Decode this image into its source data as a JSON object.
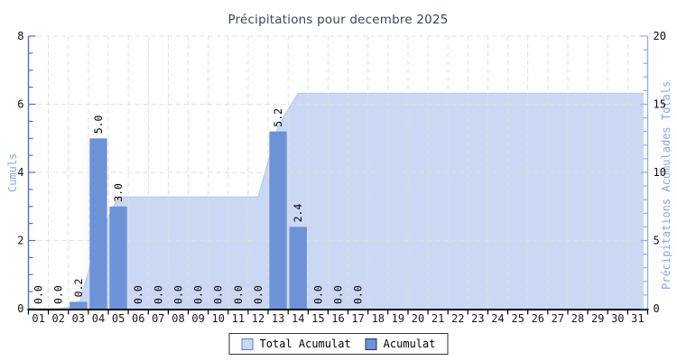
{
  "chart_data": {
    "type": "bar+area",
    "title": "Précipitations pour decembre 2025",
    "categories": [
      "01",
      "02",
      "03",
      "04",
      "05",
      "06",
      "07",
      "08",
      "09",
      "10",
      "11",
      "12",
      "13",
      "14",
      "15",
      "16",
      "17",
      "18",
      "19",
      "20",
      "21",
      "22",
      "23",
      "24",
      "25",
      "26",
      "27",
      "28",
      "29",
      "30",
      "31"
    ],
    "series": [
      {
        "name": "Acumulat",
        "type": "bar",
        "axis": "left",
        "values": [
          0,
          0,
          0.2,
          5.0,
          3.0,
          0,
          0,
          0,
          0,
          0,
          0,
          0,
          5.2,
          2.4,
          0,
          0,
          0,
          0,
          0,
          0,
          0,
          0,
          0,
          0,
          0,
          0,
          0,
          0,
          0,
          0,
          0
        ]
      },
      {
        "name": "Total Acumulat",
        "type": "area",
        "axis": "right",
        "values": [
          0,
          0,
          0.2,
          5.2,
          8.2,
          8.2,
          8.2,
          8.2,
          8.2,
          8.2,
          8.2,
          8.2,
          13.4,
          15.8,
          15.8,
          15.8,
          15.8,
          15.8,
          15.8,
          15.8,
          15.8,
          15.8,
          15.8,
          15.8,
          15.8,
          15.8,
          15.8,
          15.8,
          15.8,
          15.8,
          15.8
        ]
      }
    ],
    "bar_value_labels": [
      "0.0",
      "0.0",
      "0.2",
      "5.0",
      "3.0",
      "0.0",
      "0.0",
      "0.0",
      "0.0",
      "0.0",
      "0.0",
      "0.0",
      "5.2",
      "2.4",
      "0.0",
      "0.0",
      "0.0",
      "",
      "",
      "",
      "",
      "",
      "",
      "",
      "",
      "",
      "",
      "",
      "",
      "",
      ""
    ],
    "left_axis": {
      "title": "Cumuls",
      "min": 0,
      "max": 8,
      "major_ticks": [
        0,
        2,
        4,
        6,
        8
      ],
      "minor_step": 0.5
    },
    "right_axis": {
      "title": "Précipitations Acumulades Totals",
      "min": 0,
      "max": 20,
      "major_ticks": [
        0,
        5,
        10,
        15,
        20
      ],
      "minor_step": 1
    },
    "grid": true,
    "legend": [
      {
        "label": "Total Acumulat",
        "swatch": "area"
      },
      {
        "label": "Acumulat",
        "swatch": "bar"
      }
    ],
    "legend_position": "bottom-center"
  },
  "colors": {
    "title_text": "#39445E",
    "axis_title": "#88A7EA",
    "left_axis": "#4670D6",
    "right_axis": "#8FB0E8",
    "tick_label": "#101010",
    "day_label": "#1A1A1A",
    "bar_fill": "#6C92D8",
    "area_fill": "#CBD8F3",
    "area_edge": "#B7C9EE",
    "grid_line": "#DEDEDE",
    "x_axis": "#000000",
    "value_label": "#000000",
    "legend_border": "#333333",
    "legend_bar_swatch_border": "#29365C",
    "legend_area_swatch_border": "#5C7FCB"
  }
}
